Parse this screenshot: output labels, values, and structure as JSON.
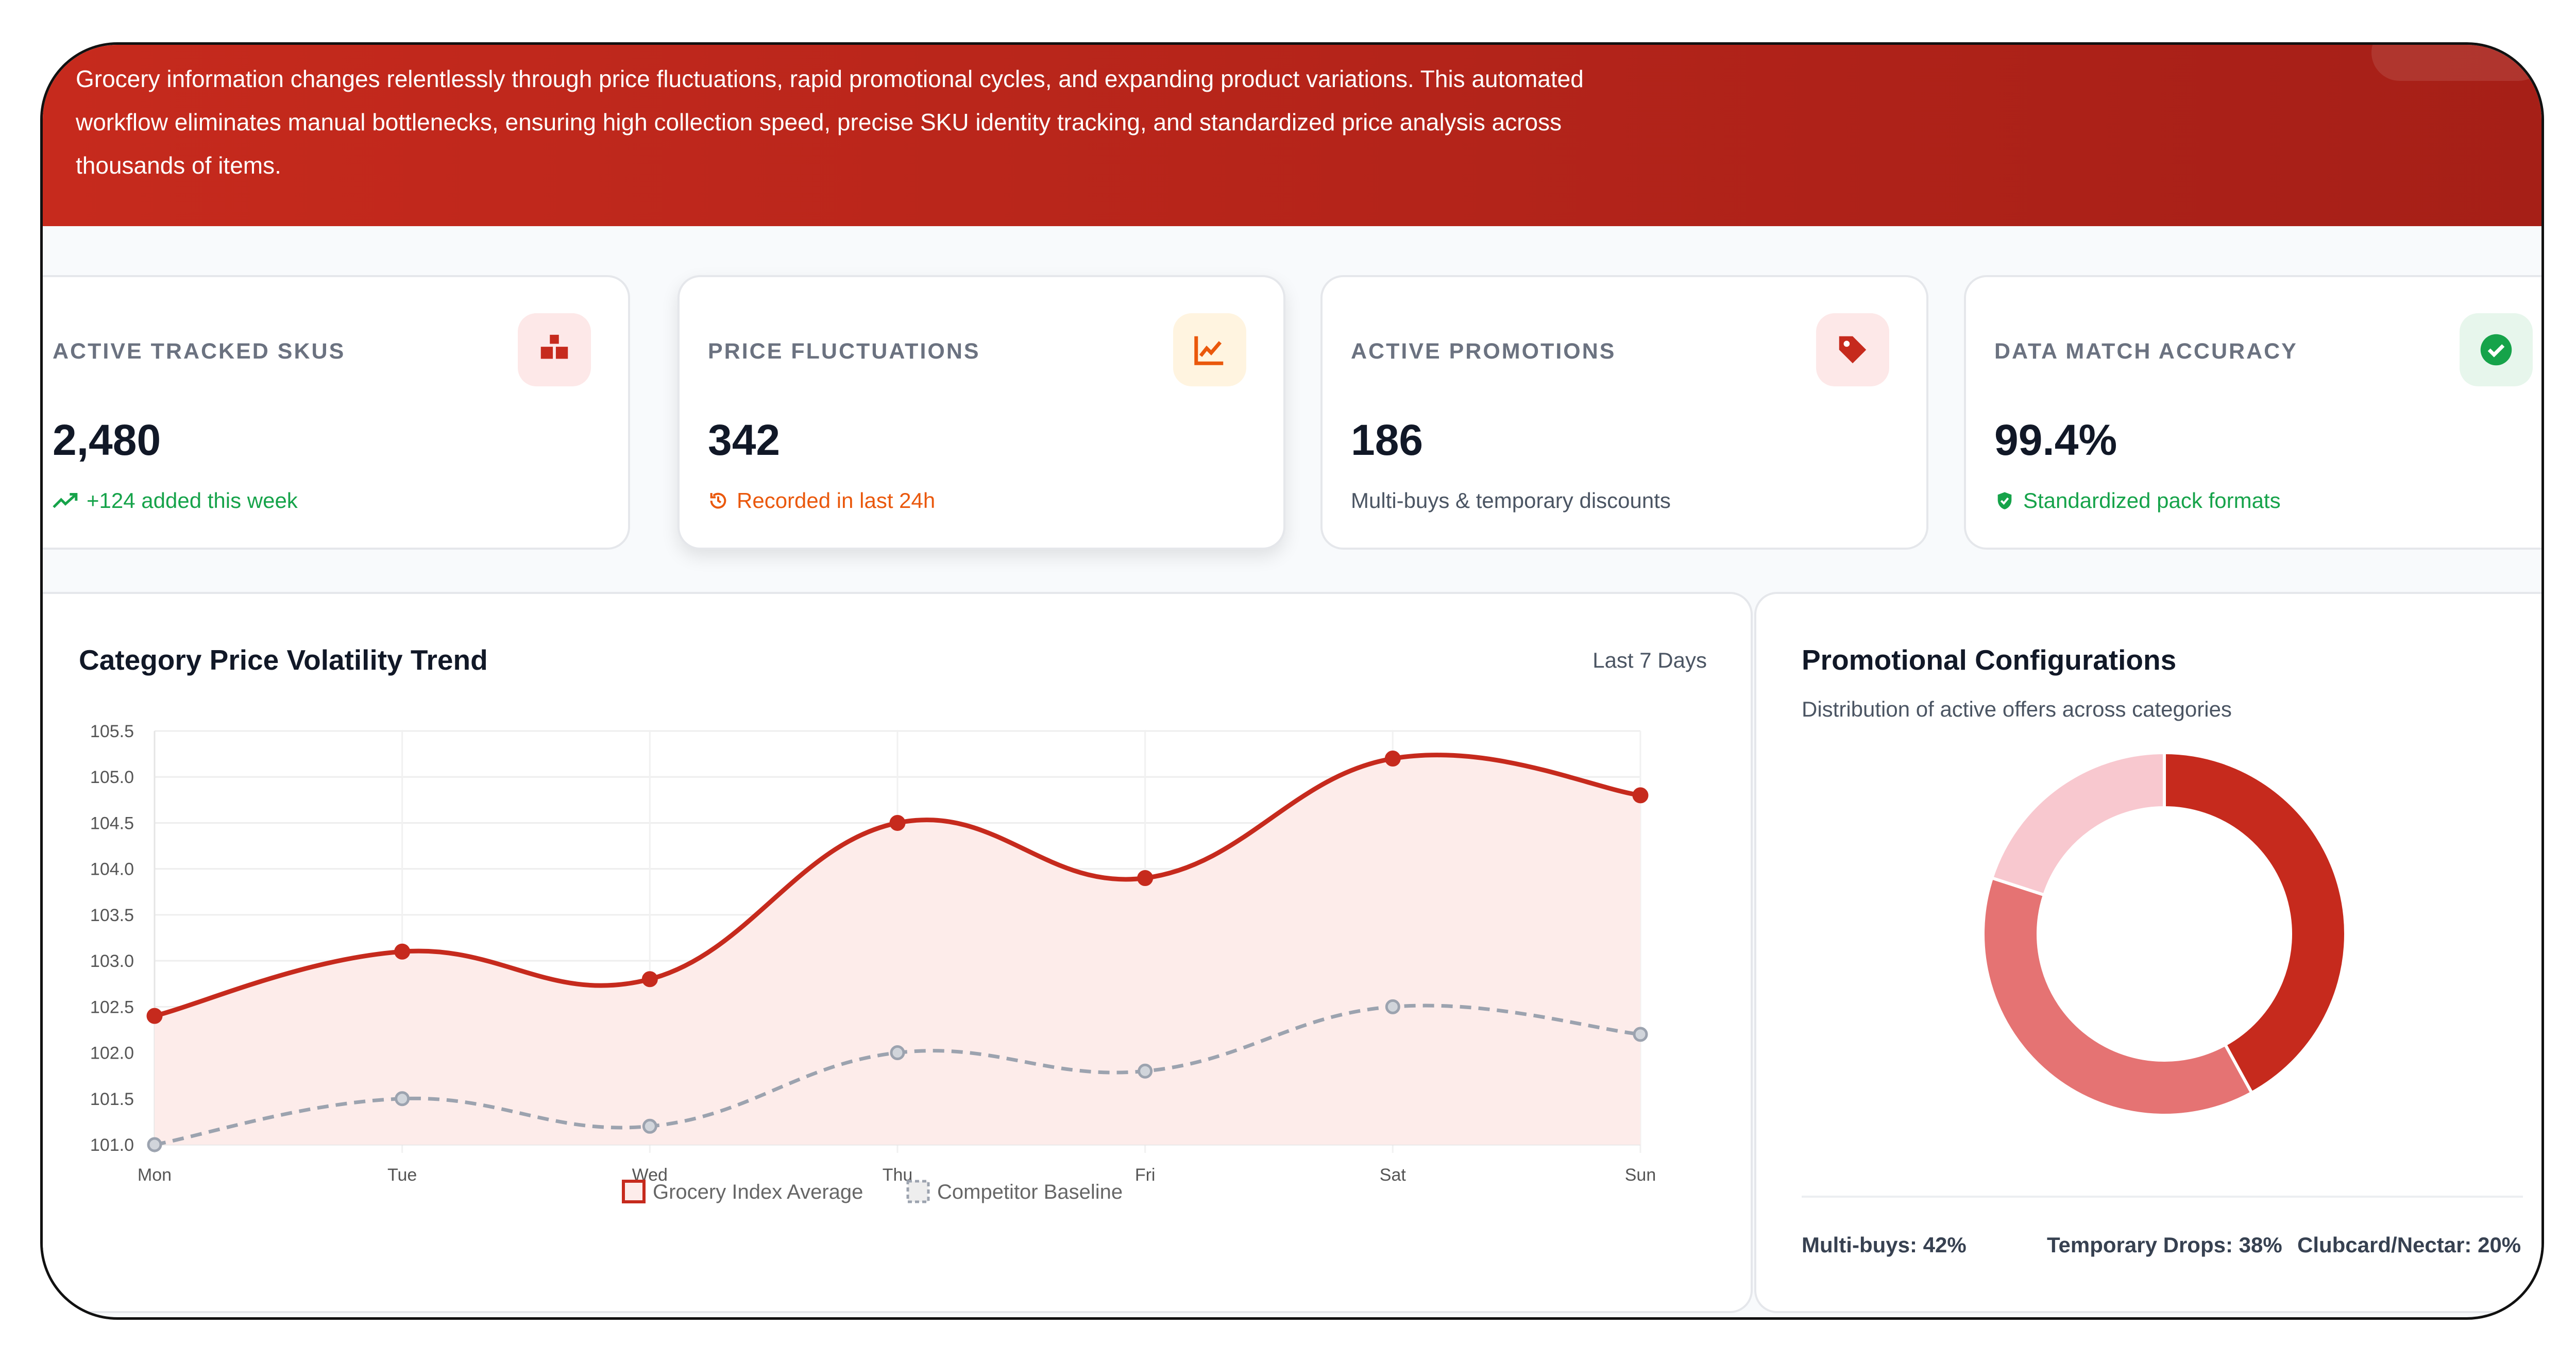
{
  "banner": {
    "lines": [
      "Grocery information changes relentlessly through price fluctuations, rapid promotional cycles, and expanding product variations. This automated",
      "workflow eliminates manual bottlenecks, ensuring high collection speed, precise SKU identity tracking, and standardized price analysis across",
      "thousands of items."
    ]
  },
  "kpis": [
    {
      "label": "ACTIVE TRACKED SKUS",
      "value": "2,480",
      "sub": "+124 added this week",
      "icon": "boxes-icon",
      "color": "#16a34a",
      "icon_bg": "#fde8e8",
      "icon_color": "#c62a1d"
    },
    {
      "label": "PRICE FLUCTUATIONS",
      "value": "342",
      "sub": "Recorded in last 24h",
      "icon": "line-chart-icon",
      "color": "#ea580c",
      "icon_bg": "#fff4e0",
      "icon_color": "#ea580c"
    },
    {
      "label": "ACTIVE PROMOTIONS",
      "value": "186",
      "sub": "Multi-buys & temporary discounts",
      "icon": "tag-icon",
      "color": "#4b5563",
      "icon_bg": "#fde8e8",
      "icon_color": "#c62a1d"
    },
    {
      "label": "DATA MATCH ACCURACY",
      "value": "99.4%",
      "sub": "Standardized pack formats",
      "icon": "check-circle-icon",
      "color": "#16a34a",
      "icon_bg": "#e7f6ec",
      "icon_color": "#16a34a"
    }
  ],
  "trend_card": {
    "title": "Category Price Volatility Trend",
    "range_label": "Last 7 Days"
  },
  "promo_card": {
    "title": "Promotional Configurations",
    "subtitle": "Distribution of active offers across categories",
    "footer": [
      "Multi-buys: 42%",
      "Temporary Drops: 38%",
      "Clubcard/Nectar: 20%"
    ]
  },
  "chart_data": [
    {
      "type": "line",
      "x": [
        "Mon",
        "Tue",
        "Wed",
        "Thu",
        "Fri",
        "Sat",
        "Sun"
      ],
      "ylim": [
        101.0,
        105.5
      ],
      "yticks": [
        "105.5",
        "105.0",
        "104.5",
        "104.0",
        "103.5",
        "103.0",
        "102.5",
        "102.0",
        "101.5",
        "101.0"
      ],
      "series": [
        {
          "name": "Grocery Index Average",
          "values": [
            102.4,
            103.1,
            102.8,
            104.5,
            103.9,
            105.2,
            104.8
          ],
          "color": "#c62a1d",
          "fill": "#fdecea"
        },
        {
          "name": "Competitor Baseline",
          "values": [
            101.0,
            101.5,
            101.2,
            102.0,
            101.8,
            102.5,
            102.2
          ],
          "color": "#9ca3af"
        }
      ],
      "legend": "bottom"
    },
    {
      "type": "pie",
      "labels": [
        "Multi-buys",
        "Temporary Drops",
        "Clubcard/Nectar"
      ],
      "values": [
        42,
        38,
        20
      ],
      "colors": [
        "#c62a1d",
        "#e57373",
        "#f8c8cf"
      ]
    }
  ]
}
